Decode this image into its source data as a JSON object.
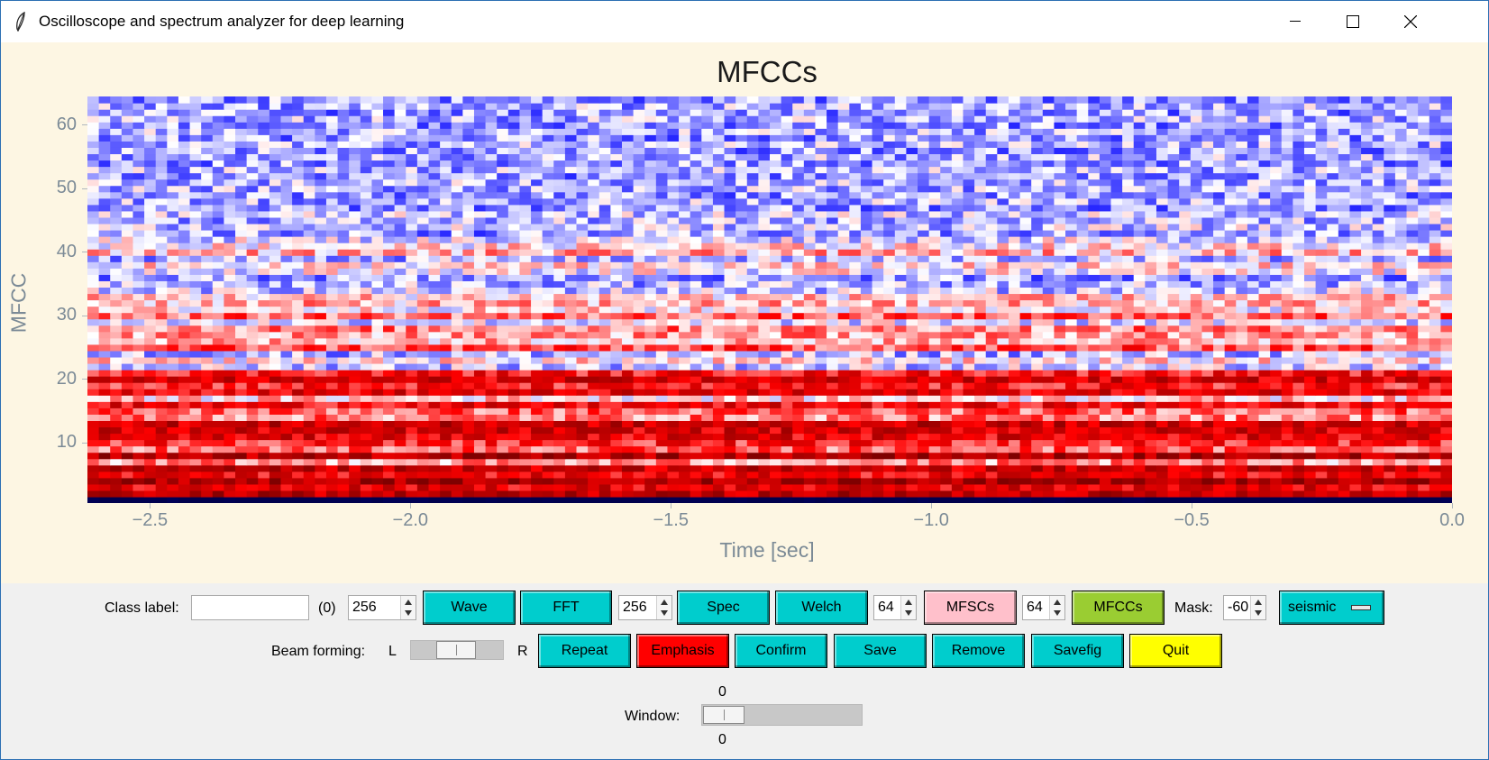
{
  "window": {
    "title": "Oscilloscope and spectrum analyzer for deep learning"
  },
  "titlebar_icons": [
    "feather-icon",
    "minimize-icon",
    "maximize-icon",
    "close-icon"
  ],
  "chart_data": {
    "type": "heatmap",
    "title": "MFCCs",
    "xlabel": "Time [sec]",
    "ylabel": "MFCC",
    "xlim": [
      -2.62,
      0.0
    ],
    "ylim": [
      1,
      64
    ],
    "xticks": [
      -2.5,
      -2.0,
      -1.5,
      -1.0,
      -0.5,
      0.0
    ],
    "xtick_labels": [
      "−2.5",
      "−2.0",
      "−1.5",
      "−1.0",
      "−0.5",
      "0.0"
    ],
    "yticks": [
      10,
      20,
      30,
      40,
      50,
      60
    ],
    "ytick_labels": [
      "10",
      "20",
      "30",
      "40",
      "50",
      "60"
    ],
    "colormap": "seismic",
    "n_coefficients": 64,
    "n_frames": 120,
    "coefficient_profile": [
      -1.0,
      0.75,
      0.6,
      0.85,
      0.55,
      0.7,
      0.2,
      0.8,
      0.3,
      0.45,
      0.6,
      0.65,
      0.7,
      0.25,
      0.3,
      0.55,
      0.1,
      0.6,
      0.45,
      0.65,
      0.5,
      -0.1,
      0.05,
      -0.15,
      0.35,
      0.15,
      0.2,
      0.25,
      -0.05,
      0.3,
      0.05,
      0.15,
      0.1,
      -0.1,
      -0.15,
      -0.2,
      0.0,
      0.05,
      -0.15,
      0.15,
      0.05,
      -0.05,
      -0.2,
      -0.1,
      -0.15,
      -0.1,
      -0.2,
      -0.15,
      -0.2,
      -0.15,
      -0.15,
      -0.2,
      -0.15,
      -0.2,
      -0.15,
      -0.2,
      -0.15,
      -0.2,
      -0.15,
      -0.2,
      -0.15,
      -0.2,
      -0.15,
      -0.2
    ]
  },
  "controls": {
    "class_label": {
      "label": "Class label:",
      "value": "",
      "count": "(0)"
    },
    "spin_wave": "256",
    "spin_fft": "256",
    "spin_welch": "64",
    "spin_mfsc": "64",
    "mask_label": "Mask:",
    "spin_mask": "-60",
    "buttons": {
      "wave": "Wave",
      "fft": "FFT",
      "spec": "Spec",
      "welch": "Welch",
      "mfscs": "MFSCs",
      "mfccs": "MFCCs",
      "repeat": "Repeat",
      "emphasis": "Emphasis",
      "confirm": "Confirm",
      "save": "Save",
      "remove": "Remove",
      "savefig": "Savefig",
      "quit": "Quit"
    },
    "colormap_menu": "seismic",
    "beam": {
      "label": "Beam forming:",
      "left": "L",
      "right": "R"
    },
    "window_slider": {
      "label": "Window:",
      "value_top": "0",
      "value_bottom": "0",
      "level": 0
    },
    "colors": {
      "cyan": "#00cdcd",
      "pink": "#ffc0cb",
      "green": "#9acd32",
      "red": "#ff0000",
      "yellow": "#ffff00"
    }
  }
}
